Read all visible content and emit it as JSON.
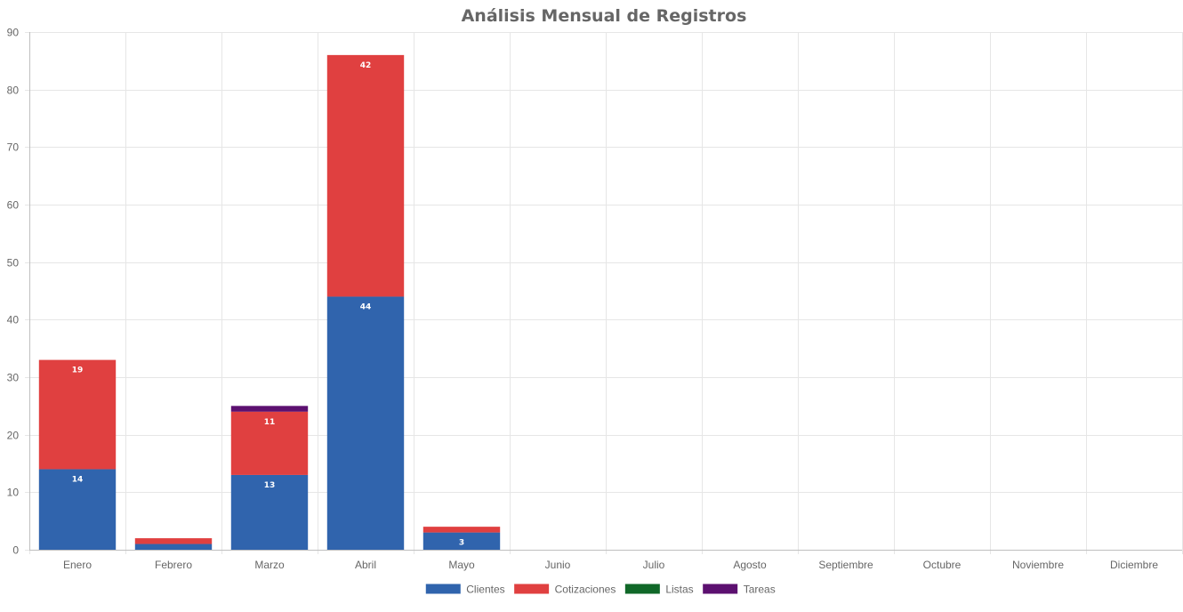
{
  "chart_data": {
    "type": "bar",
    "stacked": true,
    "title": "Análisis Mensual de Registros",
    "categories": [
      "Enero",
      "Febrero",
      "Marzo",
      "Abril",
      "Mayo",
      "Junio",
      "Julio",
      "Agosto",
      "Septiembre",
      "Octubre",
      "Noviembre",
      "Diciembre"
    ],
    "series": [
      {
        "name": "Clientes",
        "color": "#3064ad",
        "values": [
          14,
          1,
          13,
          44,
          3,
          0,
          0,
          0,
          0,
          0,
          0,
          0
        ]
      },
      {
        "name": "Cotizaciones",
        "color": "#e04040",
        "values": [
          19,
          1,
          11,
          42,
          1,
          0,
          0,
          0,
          0,
          0,
          0,
          0
        ]
      },
      {
        "name": "Listas",
        "color": "#106828",
        "values": [
          0,
          0,
          0,
          0,
          0,
          0,
          0,
          0,
          0,
          0,
          0,
          0
        ]
      },
      {
        "name": "Tareas",
        "color": "#5c1070",
        "values": [
          0,
          0,
          1,
          0,
          0,
          0,
          0,
          0,
          0,
          0,
          0,
          0
        ]
      }
    ],
    "data_labels": [
      {
        "category": "Enero",
        "series": "Clientes",
        "text": "14"
      },
      {
        "category": "Enero",
        "series": "Cotizaciones",
        "text": "19"
      },
      {
        "category": "Marzo",
        "series": "Clientes",
        "text": "13"
      },
      {
        "category": "Marzo",
        "series": "Cotizaciones",
        "text": "11"
      },
      {
        "category": "Abril",
        "series": "Clientes",
        "text": "44"
      },
      {
        "category": "Abril",
        "series": "Cotizaciones",
        "text": "42"
      },
      {
        "category": "Mayo",
        "series": "Clientes",
        "text": "3"
      }
    ],
    "ylim": [
      0,
      90
    ],
    "yticks": [
      "0",
      "10",
      "20",
      "30",
      "40",
      "50",
      "60",
      "70",
      "80",
      "90"
    ],
    "grid": true,
    "legend_position": "bottom"
  }
}
